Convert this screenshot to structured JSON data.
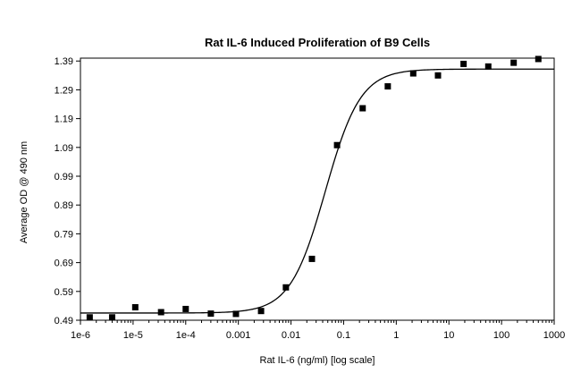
{
  "chart_data": {
    "type": "scatter",
    "title": "Rat IL-6 Induced Proliferation of B9 Cells",
    "xlabel": "Rat IL-6 (ng/ml) [log scale]",
    "ylabel": "Average OD @ 490 nm",
    "x_scale": "log",
    "xlim": [
      1e-06,
      1000
    ],
    "ylim": [
      0.49,
      1.4
    ],
    "x_ticks": [
      1e-06,
      1e-05,
      0.0001,
      0.001,
      0.01,
      0.1,
      1,
      10,
      100,
      1000
    ],
    "x_tick_labels": [
      "1e-6",
      "1e-5",
      "1e-4",
      "0.001",
      "0.01",
      "0.1",
      "1",
      "10",
      "100",
      "1000"
    ],
    "y_ticks": [
      0.49,
      0.59,
      0.69,
      0.79,
      0.89,
      0.99,
      1.09,
      1.19,
      1.29,
      1.39
    ],
    "y_tick_labels": [
      "0.49",
      "0.59",
      "0.69",
      "0.79",
      "0.89",
      "0.99",
      "1.09",
      "1.19",
      "1.29",
      "1.39"
    ],
    "grid": false,
    "legend": "none",
    "series": [
      {
        "marker": "square",
        "color": "#000000",
        "points": [
          [
            1.5e-06,
            0.5
          ],
          [
            4e-06,
            0.5
          ],
          [
            1.1e-05,
            0.535
          ],
          [
            3.4e-05,
            0.518
          ],
          [
            0.0001,
            0.529
          ],
          [
            0.0003,
            0.513
          ],
          [
            0.0009,
            0.512
          ],
          [
            0.0027,
            0.522
          ],
          [
            0.008,
            0.604
          ],
          [
            0.025,
            0.703
          ],
          [
            0.075,
            1.098
          ],
          [
            0.23,
            1.226
          ],
          [
            0.69,
            1.302
          ],
          [
            2.1,
            1.347
          ],
          [
            6.2,
            1.34
          ],
          [
            19,
            1.38
          ],
          [
            56,
            1.371
          ],
          [
            170,
            1.384
          ],
          [
            500,
            1.397
          ]
        ]
      },
      {
        "type": "line",
        "color": "#000000",
        "fit": "four-parameter logistic",
        "params": {
          "bottom": 0.515,
          "top": 1.362,
          "ec50": 0.045,
          "hill": 1.3
        }
      }
    ]
  }
}
